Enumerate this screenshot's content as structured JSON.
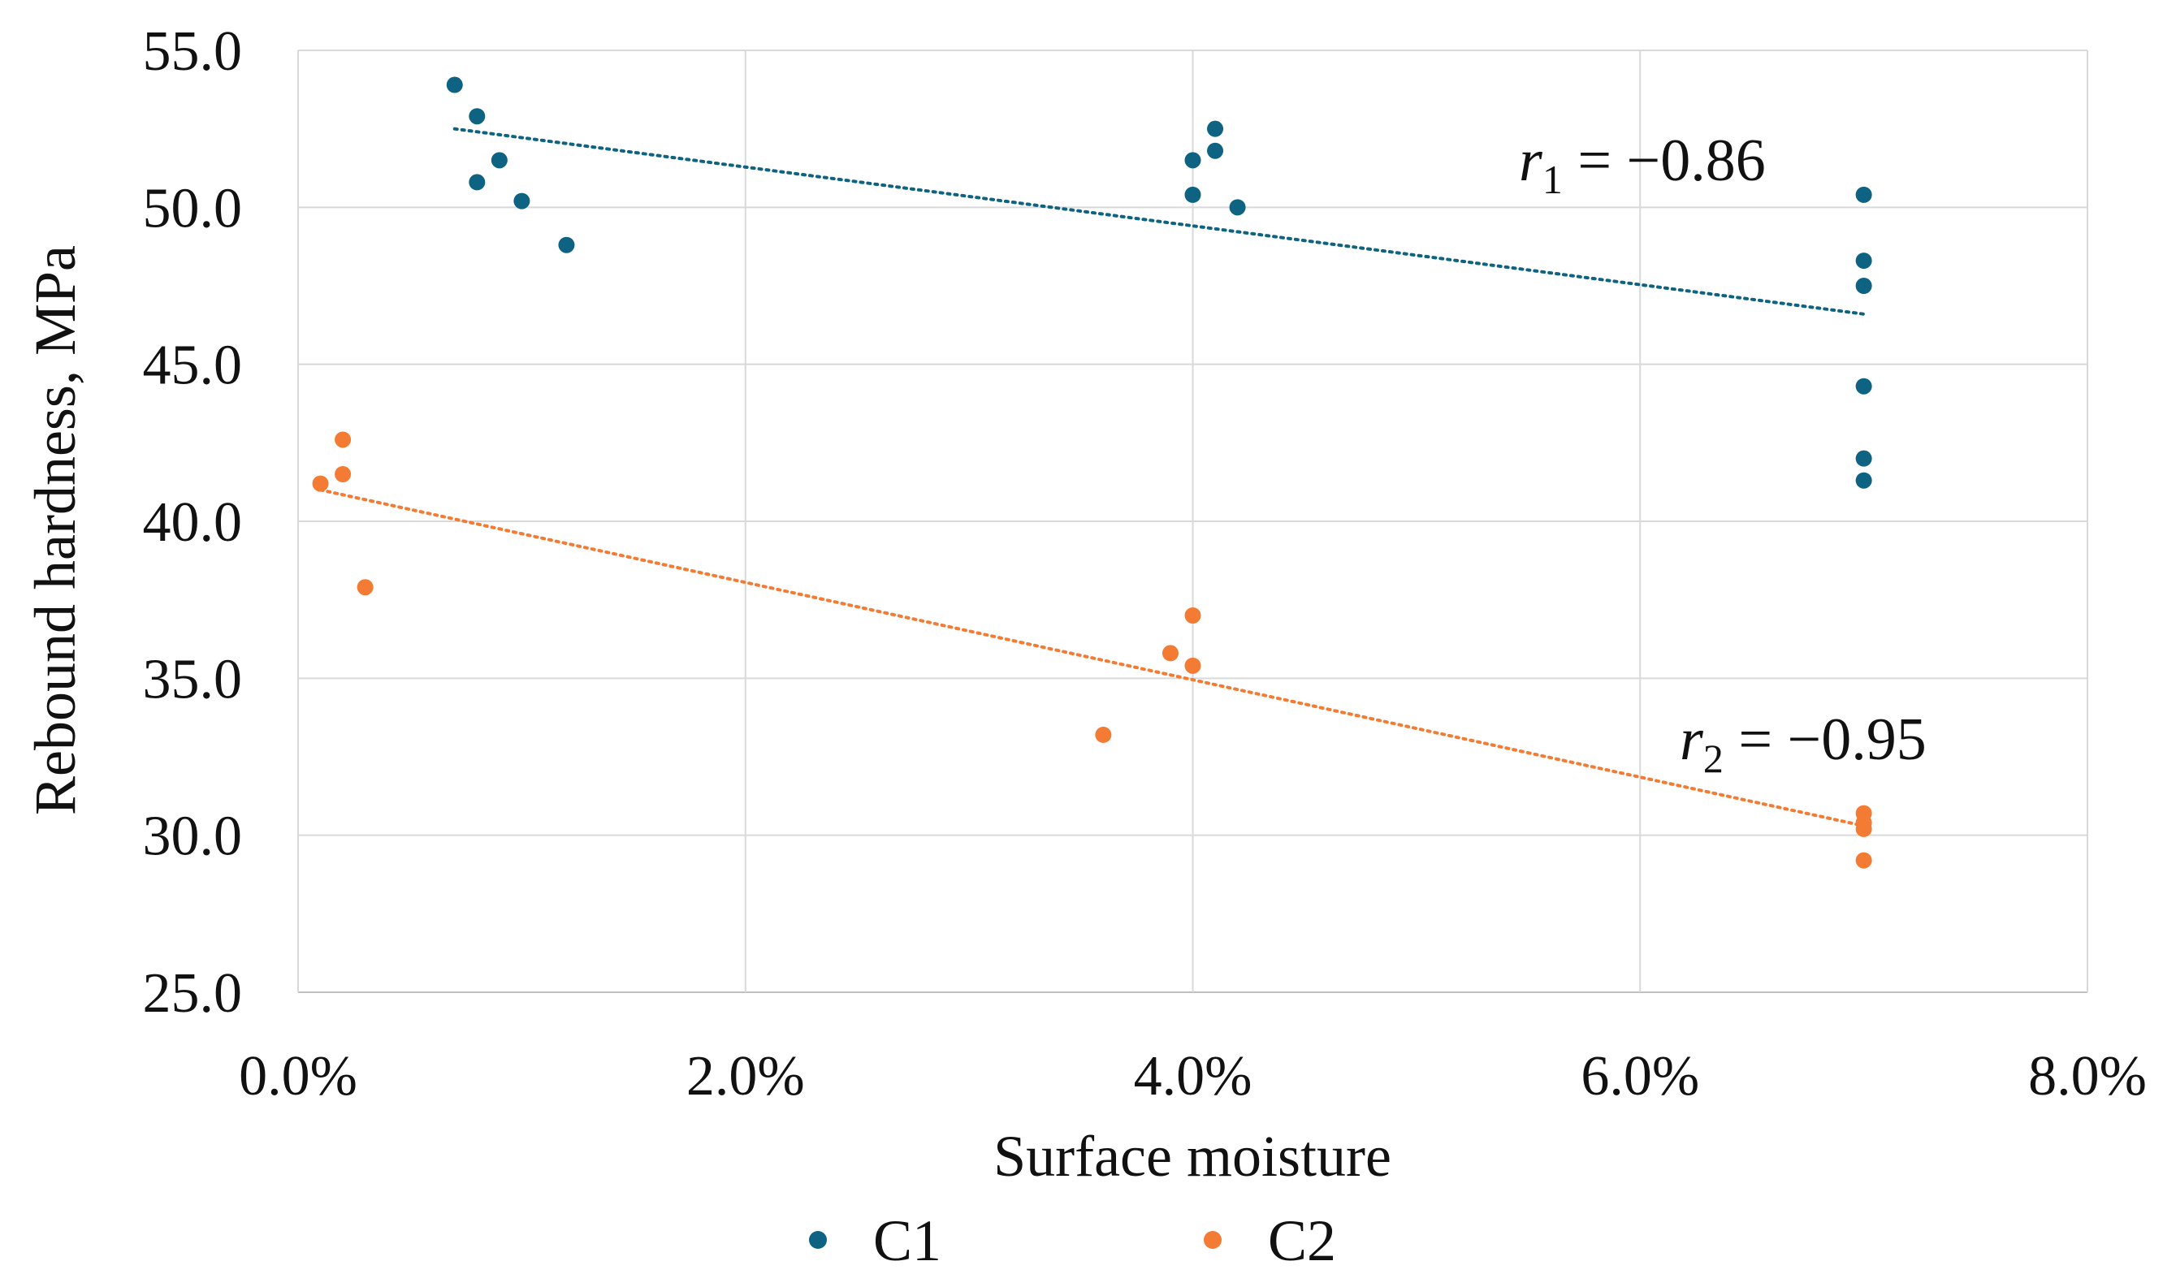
{
  "chart_data": {
    "type": "scatter",
    "title": "",
    "xlabel": "Surface moisture",
    "ylabel": "Rebound hardness, MPa",
    "xlim": [
      0.0,
      8.0
    ],
    "ylim": [
      25.0,
      55.0
    ],
    "x_ticks": [
      "0.0%",
      "2.0%",
      "4.0%",
      "6.0%",
      "8.0%"
    ],
    "y_ticks": [
      "25.0",
      "30.0",
      "35.0",
      "40.0",
      "45.0",
      "50.0",
      "55.0"
    ],
    "grid": true,
    "legend_position": "bottom",
    "series": [
      {
        "name": "C1",
        "color": "#0e6282",
        "points": [
          {
            "x": 0.7,
            "y": 53.9
          },
          {
            "x": 0.8,
            "y": 52.9
          },
          {
            "x": 0.9,
            "y": 51.5
          },
          {
            "x": 0.8,
            "y": 50.8
          },
          {
            "x": 1.0,
            "y": 50.2
          },
          {
            "x": 1.2,
            "y": 48.8
          },
          {
            "x": 4.1,
            "y": 52.5
          },
          {
            "x": 4.1,
            "y": 51.8
          },
          {
            "x": 4.0,
            "y": 51.5
          },
          {
            "x": 4.0,
            "y": 50.4
          },
          {
            "x": 4.2,
            "y": 50.0
          },
          {
            "x": 7.0,
            "y": 50.4
          },
          {
            "x": 7.0,
            "y": 48.3
          },
          {
            "x": 7.0,
            "y": 47.5
          },
          {
            "x": 7.0,
            "y": 44.3
          },
          {
            "x": 7.0,
            "y": 42.0
          },
          {
            "x": 7.0,
            "y": 41.3
          }
        ],
        "trendline": {
          "x": [
            0.7,
            7.0
          ],
          "y": [
            52.5,
            46.6
          ]
        },
        "annotation": {
          "symbol": "r",
          "subscript": "1",
          "text": " = −0.86"
        }
      },
      {
        "name": "C2",
        "color": "#f47b33",
        "points": [
          {
            "x": 0.2,
            "y": 42.6
          },
          {
            "x": 0.2,
            "y": 41.5
          },
          {
            "x": 0.1,
            "y": 41.2
          },
          {
            "x": 0.3,
            "y": 37.9
          },
          {
            "x": 4.0,
            "y": 37.0
          },
          {
            "x": 3.9,
            "y": 35.8
          },
          {
            "x": 4.0,
            "y": 35.4
          },
          {
            "x": 3.6,
            "y": 33.2
          },
          {
            "x": 7.0,
            "y": 30.7
          },
          {
            "x": 7.0,
            "y": 30.4
          },
          {
            "x": 7.0,
            "y": 30.2
          },
          {
            "x": 7.0,
            "y": 29.2
          }
        ],
        "trendline": {
          "x": [
            0.1,
            7.0
          ],
          "y": [
            41.0,
            30.3
          ]
        },
        "annotation": {
          "symbol": "r",
          "subscript": "2",
          "text": " = −0.95"
        }
      }
    ],
    "gridline_color": "#d9d9d9",
    "axis_color": "#bfbfbf"
  }
}
